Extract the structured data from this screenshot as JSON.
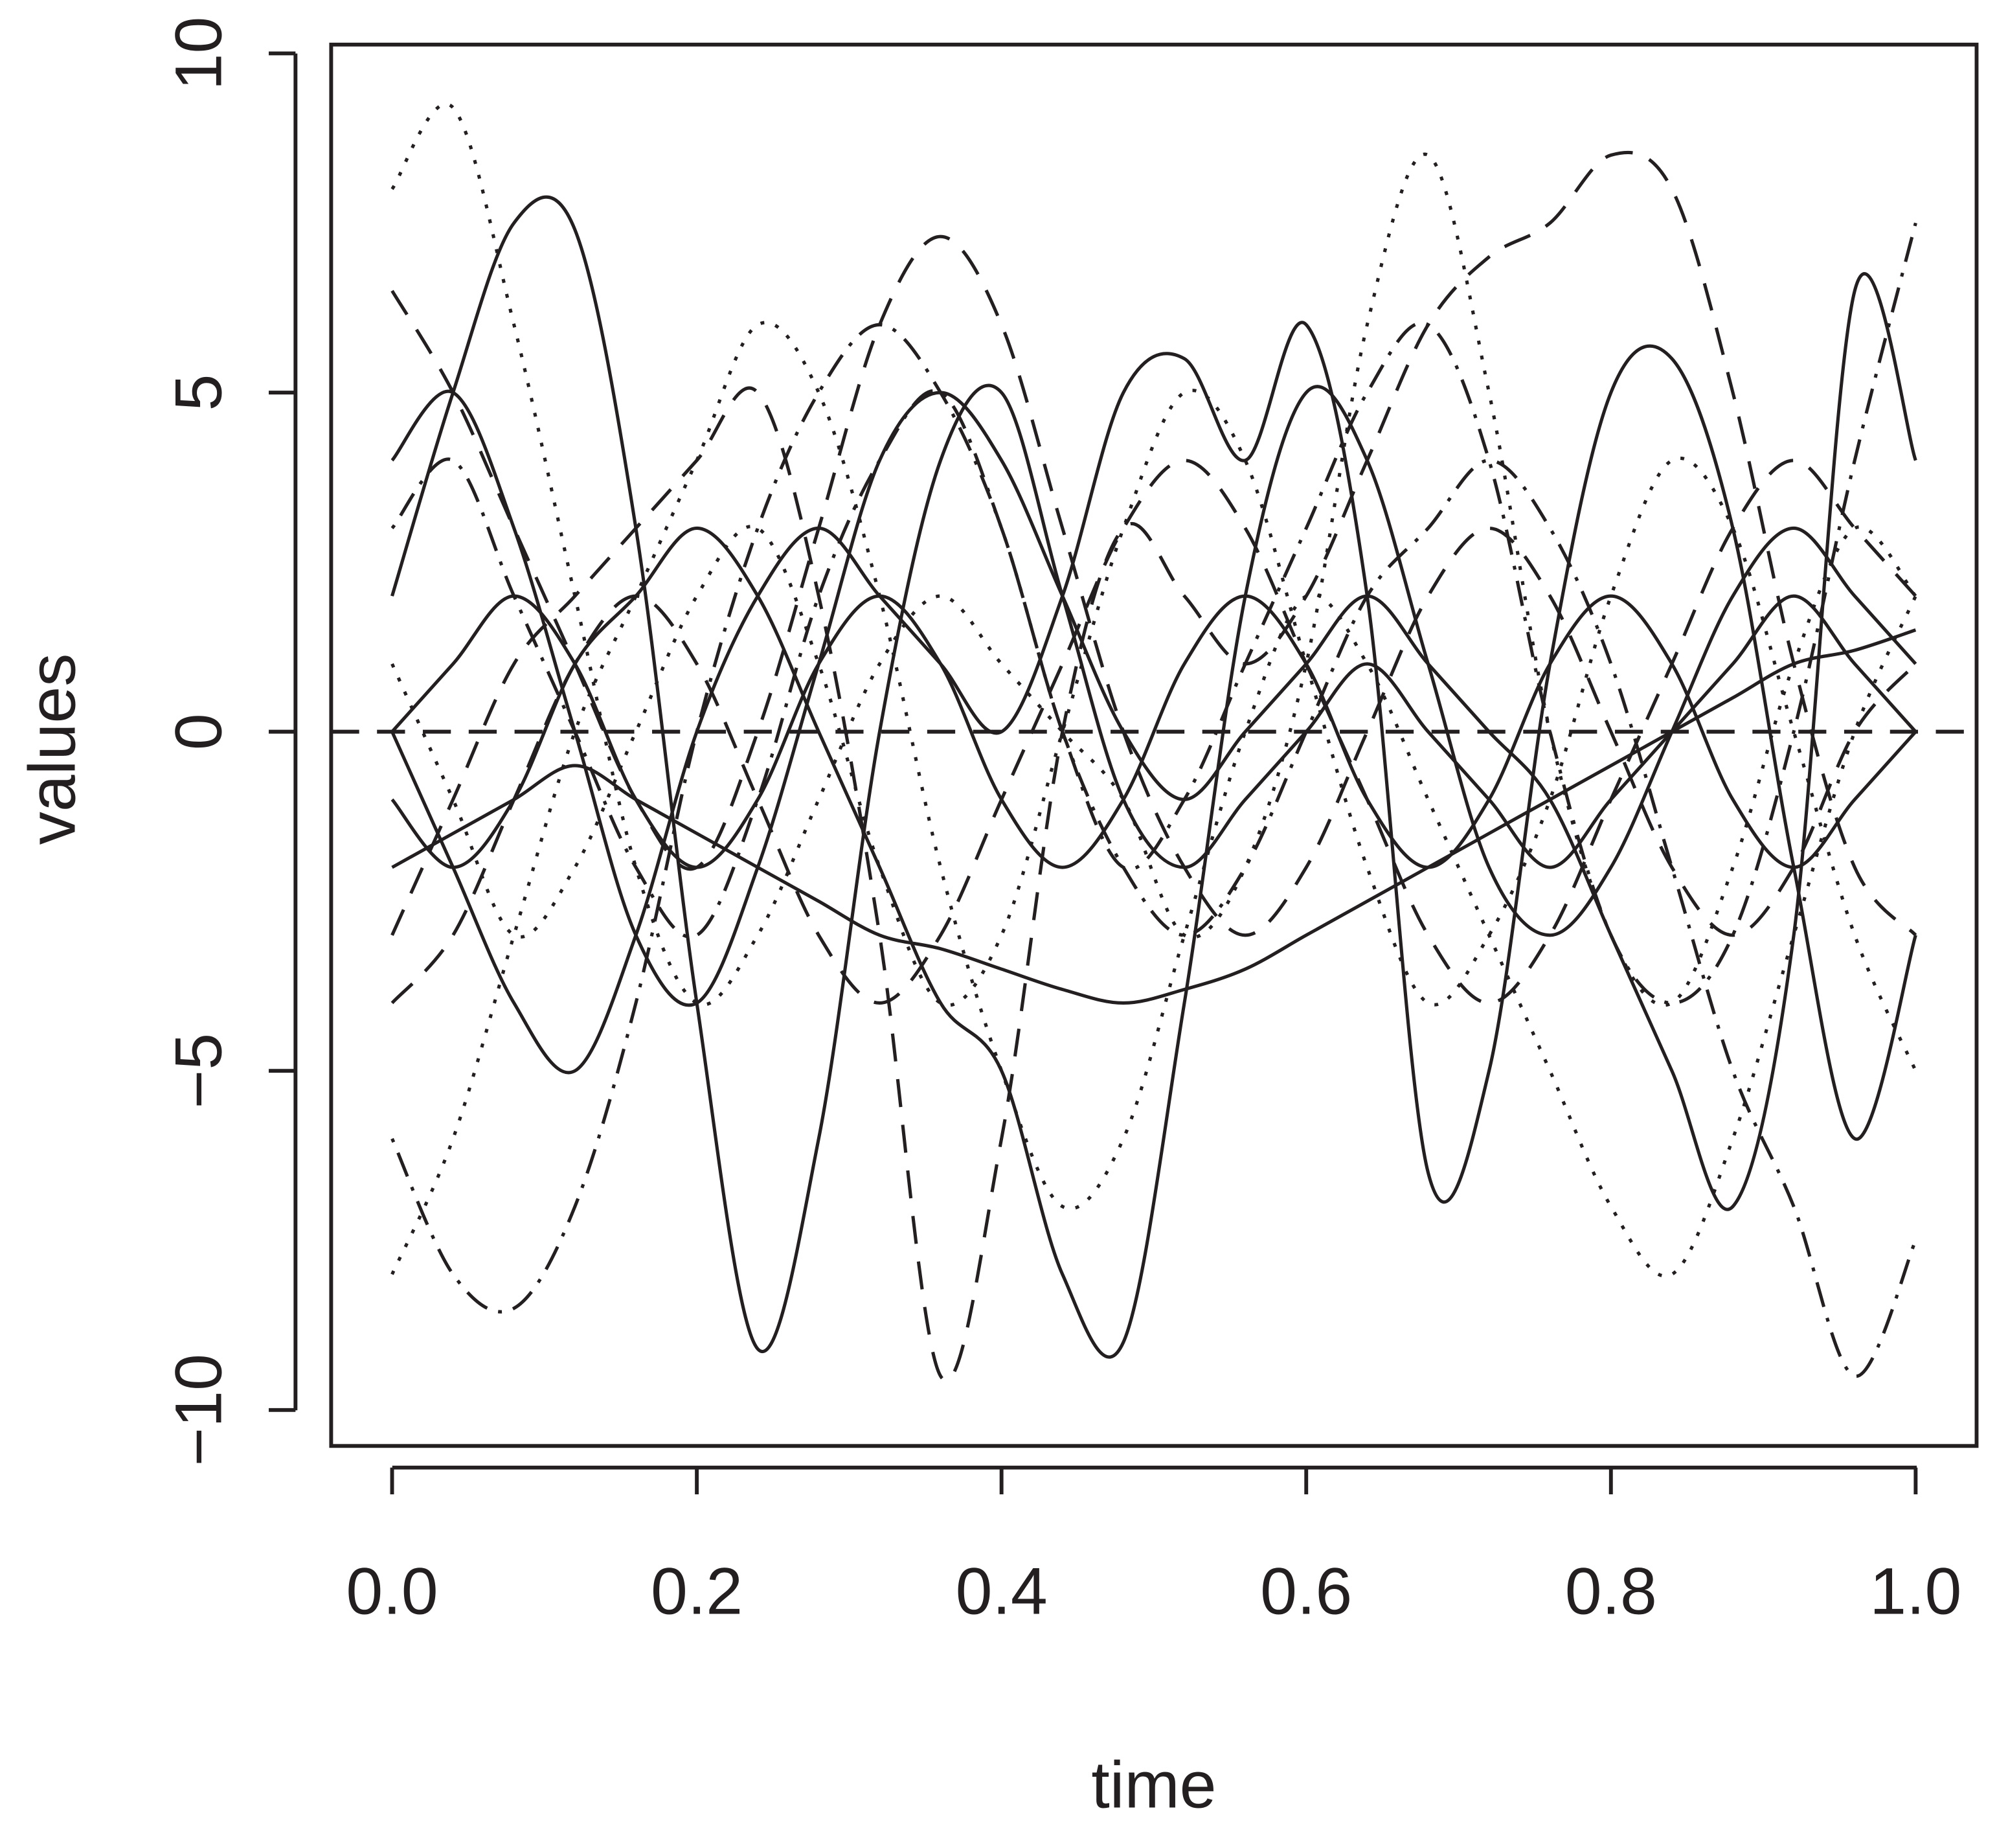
{
  "chart_data": {
    "type": "line",
    "xlabel": "time",
    "ylabel": "values",
    "xlim": [
      -0.04,
      1.04
    ],
    "ylim": [
      -10.53,
      10.13
    ],
    "xticks": [
      {
        "value": 0,
        "label": "0.0"
      },
      {
        "value": 0.2,
        "label": "0.2"
      },
      {
        "value": 0.4,
        "label": "0.4"
      },
      {
        "value": 0.6,
        "label": "0.6"
      },
      {
        "value": 0.8,
        "label": "0.8"
      },
      {
        "value": 1,
        "label": "1.0"
      }
    ],
    "yticks": [
      {
        "value": -10,
        "label": "−10"
      },
      {
        "value": -5,
        "label": "−5"
      },
      0,
      5,
      10
    ],
    "reference_line": {
      "y": 0,
      "linestyle": "dashed"
    },
    "x": [
      0,
      0.04,
      0.08,
      0.12,
      0.16,
      0.2,
      0.24,
      0.28,
      0.32,
      0.36,
      0.4,
      0.44,
      0.48,
      0.52,
      0.56,
      0.6,
      0.64,
      0.68,
      0.72,
      0.76,
      0.8,
      0.84,
      0.88,
      0.92,
      0.96,
      1.0
    ],
    "series": [
      {
        "color": "#231f20",
        "linestyle": "solid",
        "values": [
          2,
          5,
          7.5,
          7.4,
          3,
          -4,
          -9.1,
          -6,
          0,
          4,
          5,
          2,
          -1,
          -2,
          -1,
          0,
          1,
          0,
          -1,
          -2,
          -1,
          0,
          1,
          2,
          1,
          0
        ]
      },
      {
        "color": "#231f20",
        "linestyle": "solid",
        "values": [
          -1,
          -2,
          -1,
          1,
          2,
          3,
          2,
          0,
          -2,
          -4,
          -5,
          -8,
          -9,
          -4,
          2,
          5,
          4,
          1,
          -2,
          -3,
          -2,
          0,
          2,
          3,
          2,
          1
        ]
      },
      {
        "color": "#231f20",
        "linestyle": "dashed",
        "values": [
          -3,
          -1,
          1,
          2,
          3,
          4,
          5,
          2,
          -3,
          -9.5,
          -6,
          0,
          3,
          2,
          1,
          2,
          4,
          6,
          7,
          7.5,
          8.5,
          8,
          5,
          1,
          -2,
          -3
        ]
      },
      {
        "color": "#231f20",
        "linestyle": "dotted",
        "values": [
          8,
          9.2,
          6,
          2,
          -2,
          -4,
          -3,
          -1,
          1,
          2,
          1,
          0,
          -1,
          -3,
          -2,
          1,
          6,
          8.5,
          5,
          0,
          -3,
          -4,
          -2,
          1,
          3,
          2
        ]
      },
      {
        "color": "#231f20",
        "linestyle": "solid",
        "values": [
          0,
          -2,
          -4,
          -5,
          -3,
          0,
          2,
          3,
          2,
          1,
          0,
          2,
          5,
          5.5,
          4,
          6,
          2,
          -6.5,
          -5,
          1,
          5,
          5.5,
          3,
          -2,
          -6,
          -3
        ]
      },
      {
        "color": "#231f20",
        "linestyle": "dashdot",
        "values": [
          -6,
          -8,
          -8.5,
          -7,
          -4,
          0,
          3,
          5,
          6,
          5,
          3,
          0,
          -2,
          -3,
          -2,
          0,
          2,
          3,
          4,
          3,
          1,
          -2,
          -5,
          -7,
          -9.5,
          -7.5
        ]
      },
      {
        "color": "#231f20",
        "linestyle": "solid",
        "values": [
          4,
          5,
          3,
          0,
          -3,
          -4,
          -2,
          1,
          4,
          5,
          4,
          2,
          0,
          -1,
          0,
          1,
          2,
          1,
          0,
          -1,
          -3,
          -5,
          -7,
          -3,
          6.5,
          4
        ]
      },
      {
        "color": "#231f20",
        "linestyle": "dashed",
        "values": [
          6.5,
          5,
          3,
          1,
          -1,
          -2,
          0,
          3,
          6,
          7.3,
          6,
          3,
          0,
          -2,
          -3,
          -2,
          0,
          2,
          3,
          2,
          0,
          -2,
          -3,
          -2,
          0,
          1
        ]
      },
      {
        "color": "#231f20",
        "linestyle": "dotted",
        "values": [
          -8,
          -6,
          -3,
          0,
          2,
          4,
          6,
          5,
          2,
          -2,
          -5,
          -7,
          -6,
          -3,
          0,
          2,
          1,
          -1,
          -3,
          -5,
          -7,
          -8,
          -6,
          -3,
          0,
          2
        ]
      },
      {
        "color": "#231f20",
        "linestyle": "solid",
        "values": [
          -2,
          -1.5,
          -1,
          -0.5,
          -1,
          -1.5,
          -2,
          -2.5,
          -3,
          -3.2,
          -3.5,
          -3.8,
          -4,
          -3.8,
          -3.5,
          -3,
          -2.5,
          -2,
          -1.5,
          -1,
          -0.5,
          0,
          0.5,
          1,
          1.2,
          1.5
        ]
      },
      {
        "color": "#231f20",
        "linestyle": "dashdot",
        "values": [
          3,
          4,
          2,
          0,
          -2,
          -3,
          -1,
          2,
          4,
          5,
          3,
          0,
          -2,
          -1,
          1,
          3,
          5,
          6,
          4,
          0,
          -3,
          -4,
          -3,
          0,
          4,
          7.5
        ]
      },
      {
        "color": "#231f20",
        "linestyle": "dotted",
        "values": [
          1,
          -1,
          -3,
          -2,
          0,
          2,
          3,
          1,
          -2,
          -4,
          -3,
          0,
          3,
          5,
          4,
          1,
          -2,
          -4,
          -3,
          -1,
          2,
          4,
          3,
          0,
          -3,
          -5
        ]
      },
      {
        "color": "#231f20",
        "linestyle": "solid",
        "values": [
          0,
          1,
          2,
          1,
          -1,
          -2,
          -1,
          1,
          2,
          1,
          -1,
          -2,
          -1,
          1,
          2,
          1,
          -1,
          -2,
          -1,
          1,
          2,
          1,
          -1,
          -2,
          -1,
          0
        ]
      },
      {
        "color": "#231f20",
        "linestyle": "dashed",
        "values": [
          -4,
          -3,
          -1,
          1,
          2,
          1,
          -1,
          -3,
          -4,
          -3,
          -1,
          1,
          3,
          4,
          3,
          1,
          -1,
          -3,
          -4,
          -3,
          -1,
          1,
          3,
          4,
          3,
          2
        ]
      }
    ]
  }
}
